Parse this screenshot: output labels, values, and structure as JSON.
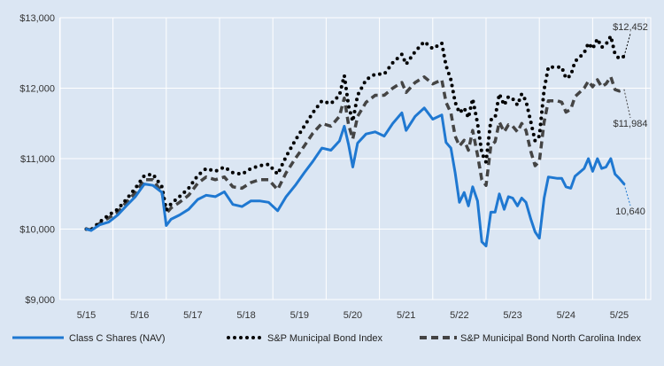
{
  "chart_data": {
    "type": "line",
    "title": "",
    "xlabel": "",
    "ylabel": "",
    "ylim": [
      9000,
      13000
    ],
    "y_ticks": [
      "$9,000",
      "$10,000",
      "$11,000",
      "$12,000",
      "$13,000"
    ],
    "y_tick_values": [
      9000,
      10000,
      11000,
      12000,
      13000
    ],
    "x_ticks": [
      "5/15",
      "5/16",
      "5/17",
      "5/18",
      "5/19",
      "5/20",
      "5/21",
      "5/22",
      "5/23",
      "5/24",
      "5/25"
    ],
    "x_tick_values": [
      2015.33,
      2016.33,
      2017.33,
      2018.33,
      2019.33,
      2020.33,
      2021.33,
      2022.33,
      2023.33,
      2024.33,
      2025.33
    ],
    "grid": true,
    "legend_position": "bottom",
    "series": [
      {
        "name": "Class C Shares (NAV)",
        "color": "#1f78d1",
        "style": "solid",
        "end_label": "10,640",
        "points": [
          [
            2015.33,
            10000
          ],
          [
            2015.42,
            9980
          ],
          [
            2015.58,
            10060
          ],
          [
            2015.75,
            10100
          ],
          [
            2015.92,
            10200
          ],
          [
            2016.08,
            10330
          ],
          [
            2016.25,
            10460
          ],
          [
            2016.42,
            10640
          ],
          [
            2016.58,
            10620
          ],
          [
            2016.75,
            10520
          ],
          [
            2016.83,
            10050
          ],
          [
            2016.92,
            10140
          ],
          [
            2017.08,
            10200
          ],
          [
            2017.25,
            10280
          ],
          [
            2017.42,
            10420
          ],
          [
            2017.58,
            10480
          ],
          [
            2017.75,
            10460
          ],
          [
            2017.92,
            10530
          ],
          [
            2018.08,
            10350
          ],
          [
            2018.25,
            10320
          ],
          [
            2018.42,
            10400
          ],
          [
            2018.58,
            10400
          ],
          [
            2018.75,
            10380
          ],
          [
            2018.92,
            10260
          ],
          [
            2019.08,
            10460
          ],
          [
            2019.25,
            10620
          ],
          [
            2019.42,
            10800
          ],
          [
            2019.58,
            10960
          ],
          [
            2019.75,
            11150
          ],
          [
            2019.92,
            11120
          ],
          [
            2020.08,
            11250
          ],
          [
            2020.17,
            11460
          ],
          [
            2020.25,
            11200
          ],
          [
            2020.33,
            10880
          ],
          [
            2020.42,
            11220
          ],
          [
            2020.58,
            11350
          ],
          [
            2020.75,
            11380
          ],
          [
            2020.92,
            11320
          ],
          [
            2021.08,
            11500
          ],
          [
            2021.25,
            11650
          ],
          [
            2021.33,
            11400
          ],
          [
            2021.5,
            11600
          ],
          [
            2021.67,
            11720
          ],
          [
            2021.83,
            11560
          ],
          [
            2022.0,
            11620
          ],
          [
            2022.08,
            11230
          ],
          [
            2022.17,
            11150
          ],
          [
            2022.25,
            10800
          ],
          [
            2022.33,
            10380
          ],
          [
            2022.42,
            10520
          ],
          [
            2022.5,
            10330
          ],
          [
            2022.58,
            10600
          ],
          [
            2022.67,
            10400
          ],
          [
            2022.75,
            9820
          ],
          [
            2022.83,
            9760
          ],
          [
            2022.92,
            10240
          ],
          [
            2023.0,
            10240
          ],
          [
            2023.08,
            10500
          ],
          [
            2023.17,
            10280
          ],
          [
            2023.25,
            10460
          ],
          [
            2023.33,
            10440
          ],
          [
            2023.42,
            10330
          ],
          [
            2023.5,
            10440
          ],
          [
            2023.58,
            10380
          ],
          [
            2023.67,
            10140
          ],
          [
            2023.75,
            9960
          ],
          [
            2023.83,
            9870
          ],
          [
            2023.92,
            10440
          ],
          [
            2024.0,
            10740
          ],
          [
            2024.17,
            10720
          ],
          [
            2024.25,
            10720
          ],
          [
            2024.33,
            10600
          ],
          [
            2024.42,
            10580
          ],
          [
            2024.5,
            10750
          ],
          [
            2024.67,
            10860
          ],
          [
            2024.75,
            11000
          ],
          [
            2024.83,
            10820
          ],
          [
            2024.92,
            11000
          ],
          [
            2025.0,
            10860
          ],
          [
            2025.08,
            10880
          ],
          [
            2025.17,
            11000
          ],
          [
            2025.25,
            10780
          ],
          [
            2025.33,
            10720
          ],
          [
            2025.42,
            10640
          ]
        ]
      },
      {
        "name": "S&P Municipal Bond Index",
        "color": "#000000",
        "style": "dotted",
        "end_label": "$12,452",
        "points": [
          [
            2015.33,
            10000
          ],
          [
            2015.42,
            9990
          ],
          [
            2015.58,
            10100
          ],
          [
            2015.75,
            10200
          ],
          [
            2015.92,
            10280
          ],
          [
            2016.08,
            10420
          ],
          [
            2016.25,
            10580
          ],
          [
            2016.42,
            10760
          ],
          [
            2016.58,
            10780
          ],
          [
            2016.75,
            10600
          ],
          [
            2016.83,
            10270
          ],
          [
            2016.92,
            10360
          ],
          [
            2017.08,
            10460
          ],
          [
            2017.25,
            10580
          ],
          [
            2017.42,
            10760
          ],
          [
            2017.58,
            10860
          ],
          [
            2017.75,
            10820
          ],
          [
            2017.92,
            10880
          ],
          [
            2018.08,
            10800
          ],
          [
            2018.25,
            10780
          ],
          [
            2018.42,
            10860
          ],
          [
            2018.58,
            10900
          ],
          [
            2018.75,
            10920
          ],
          [
            2018.92,
            10780
          ],
          [
            2019.08,
            11030
          ],
          [
            2019.25,
            11260
          ],
          [
            2019.42,
            11460
          ],
          [
            2019.58,
            11650
          ],
          [
            2019.75,
            11820
          ],
          [
            2019.92,
            11780
          ],
          [
            2020.08,
            11900
          ],
          [
            2020.17,
            12180
          ],
          [
            2020.25,
            11750
          ],
          [
            2020.33,
            11530
          ],
          [
            2020.42,
            11900
          ],
          [
            2020.58,
            12120
          ],
          [
            2020.75,
            12200
          ],
          [
            2020.92,
            12200
          ],
          [
            2021.08,
            12360
          ],
          [
            2021.25,
            12480
          ],
          [
            2021.33,
            12340
          ],
          [
            2021.5,
            12520
          ],
          [
            2021.67,
            12660
          ],
          [
            2021.83,
            12560
          ],
          [
            2022.0,
            12640
          ],
          [
            2022.08,
            12320
          ],
          [
            2022.17,
            12120
          ],
          [
            2022.25,
            11800
          ],
          [
            2022.33,
            11650
          ],
          [
            2022.42,
            11720
          ],
          [
            2022.5,
            11580
          ],
          [
            2022.58,
            11850
          ],
          [
            2022.67,
            11500
          ],
          [
            2022.75,
            11080
          ],
          [
            2022.83,
            10950
          ],
          [
            2022.92,
            11550
          ],
          [
            2023.0,
            11580
          ],
          [
            2023.08,
            11920
          ],
          [
            2023.17,
            11760
          ],
          [
            2023.25,
            11880
          ],
          [
            2023.33,
            11850
          ],
          [
            2023.42,
            11760
          ],
          [
            2023.5,
            11920
          ],
          [
            2023.58,
            11820
          ],
          [
            2023.67,
            11520
          ],
          [
            2023.75,
            11250
          ],
          [
            2023.83,
            11320
          ],
          [
            2023.92,
            11980
          ],
          [
            2024.0,
            12300
          ],
          [
            2024.17,
            12300
          ],
          [
            2024.25,
            12300
          ],
          [
            2024.33,
            12140
          ],
          [
            2024.42,
            12180
          ],
          [
            2024.5,
            12380
          ],
          [
            2024.67,
            12500
          ],
          [
            2024.75,
            12640
          ],
          [
            2024.83,
            12560
          ],
          [
            2024.92,
            12700
          ],
          [
            2025.0,
            12580
          ],
          [
            2025.08,
            12620
          ],
          [
            2025.17,
            12740
          ],
          [
            2025.25,
            12480
          ],
          [
            2025.33,
            12420
          ],
          [
            2025.42,
            12452
          ]
        ]
      },
      {
        "name": "S&P Municipal Bond North Carolina Index",
        "color": "#444444",
        "style": "dashed",
        "end_label": "$11,984",
        "points": [
          [
            2015.33,
            10000
          ],
          [
            2015.42,
            9990
          ],
          [
            2015.58,
            10080
          ],
          [
            2015.75,
            10160
          ],
          [
            2015.92,
            10240
          ],
          [
            2016.08,
            10380
          ],
          [
            2016.25,
            10520
          ],
          [
            2016.42,
            10700
          ],
          [
            2016.58,
            10700
          ],
          [
            2016.75,
            10520
          ],
          [
            2016.83,
            10220
          ],
          [
            2016.92,
            10300
          ],
          [
            2017.08,
            10380
          ],
          [
            2017.25,
            10480
          ],
          [
            2017.42,
            10650
          ],
          [
            2017.58,
            10740
          ],
          [
            2017.75,
            10700
          ],
          [
            2017.92,
            10740
          ],
          [
            2018.08,
            10600
          ],
          [
            2018.25,
            10580
          ],
          [
            2018.42,
            10660
          ],
          [
            2018.58,
            10700
          ],
          [
            2018.75,
            10700
          ],
          [
            2018.92,
            10560
          ],
          [
            2019.08,
            10800
          ],
          [
            2019.25,
            11000
          ],
          [
            2019.42,
            11180
          ],
          [
            2019.58,
            11360
          ],
          [
            2019.75,
            11500
          ],
          [
            2019.92,
            11460
          ],
          [
            2020.08,
            11600
          ],
          [
            2020.17,
            11860
          ],
          [
            2020.25,
            11480
          ],
          [
            2020.33,
            11280
          ],
          [
            2020.42,
            11600
          ],
          [
            2020.58,
            11800
          ],
          [
            2020.75,
            11900
          ],
          [
            2020.92,
            11900
          ],
          [
            2021.08,
            12000
          ],
          [
            2021.25,
            12080
          ],
          [
            2021.33,
            11940
          ],
          [
            2021.5,
            12080
          ],
          [
            2021.67,
            12160
          ],
          [
            2021.83,
            12060
          ],
          [
            2022.0,
            12120
          ],
          [
            2022.08,
            11800
          ],
          [
            2022.17,
            11650
          ],
          [
            2022.25,
            11320
          ],
          [
            2022.33,
            11180
          ],
          [
            2022.42,
            11260
          ],
          [
            2022.5,
            11120
          ],
          [
            2022.58,
            11400
          ],
          [
            2022.67,
            11050
          ],
          [
            2022.75,
            10700
          ],
          [
            2022.83,
            10620
          ],
          [
            2022.92,
            11180
          ],
          [
            2023.0,
            11240
          ],
          [
            2023.08,
            11520
          ],
          [
            2023.17,
            11380
          ],
          [
            2023.25,
            11480
          ],
          [
            2023.33,
            11460
          ],
          [
            2023.42,
            11380
          ],
          [
            2023.5,
            11500
          ],
          [
            2023.58,
            11400
          ],
          [
            2023.67,
            11100
          ],
          [
            2023.75,
            10900
          ],
          [
            2023.83,
            10960
          ],
          [
            2023.92,
            11520
          ],
          [
            2024.0,
            11820
          ],
          [
            2024.17,
            11820
          ],
          [
            2024.25,
            11800
          ],
          [
            2024.33,
            11660
          ],
          [
            2024.42,
            11700
          ],
          [
            2024.5,
            11880
          ],
          [
            2024.67,
            12000
          ],
          [
            2024.75,
            12100
          ],
          [
            2024.83,
            12020
          ],
          [
            2024.92,
            12120
          ],
          [
            2025.0,
            12020
          ],
          [
            2025.08,
            12060
          ],
          [
            2025.17,
            12160
          ],
          [
            2025.25,
            11980
          ],
          [
            2025.33,
            11960
          ],
          [
            2025.42,
            11984
          ]
        ]
      }
    ]
  }
}
